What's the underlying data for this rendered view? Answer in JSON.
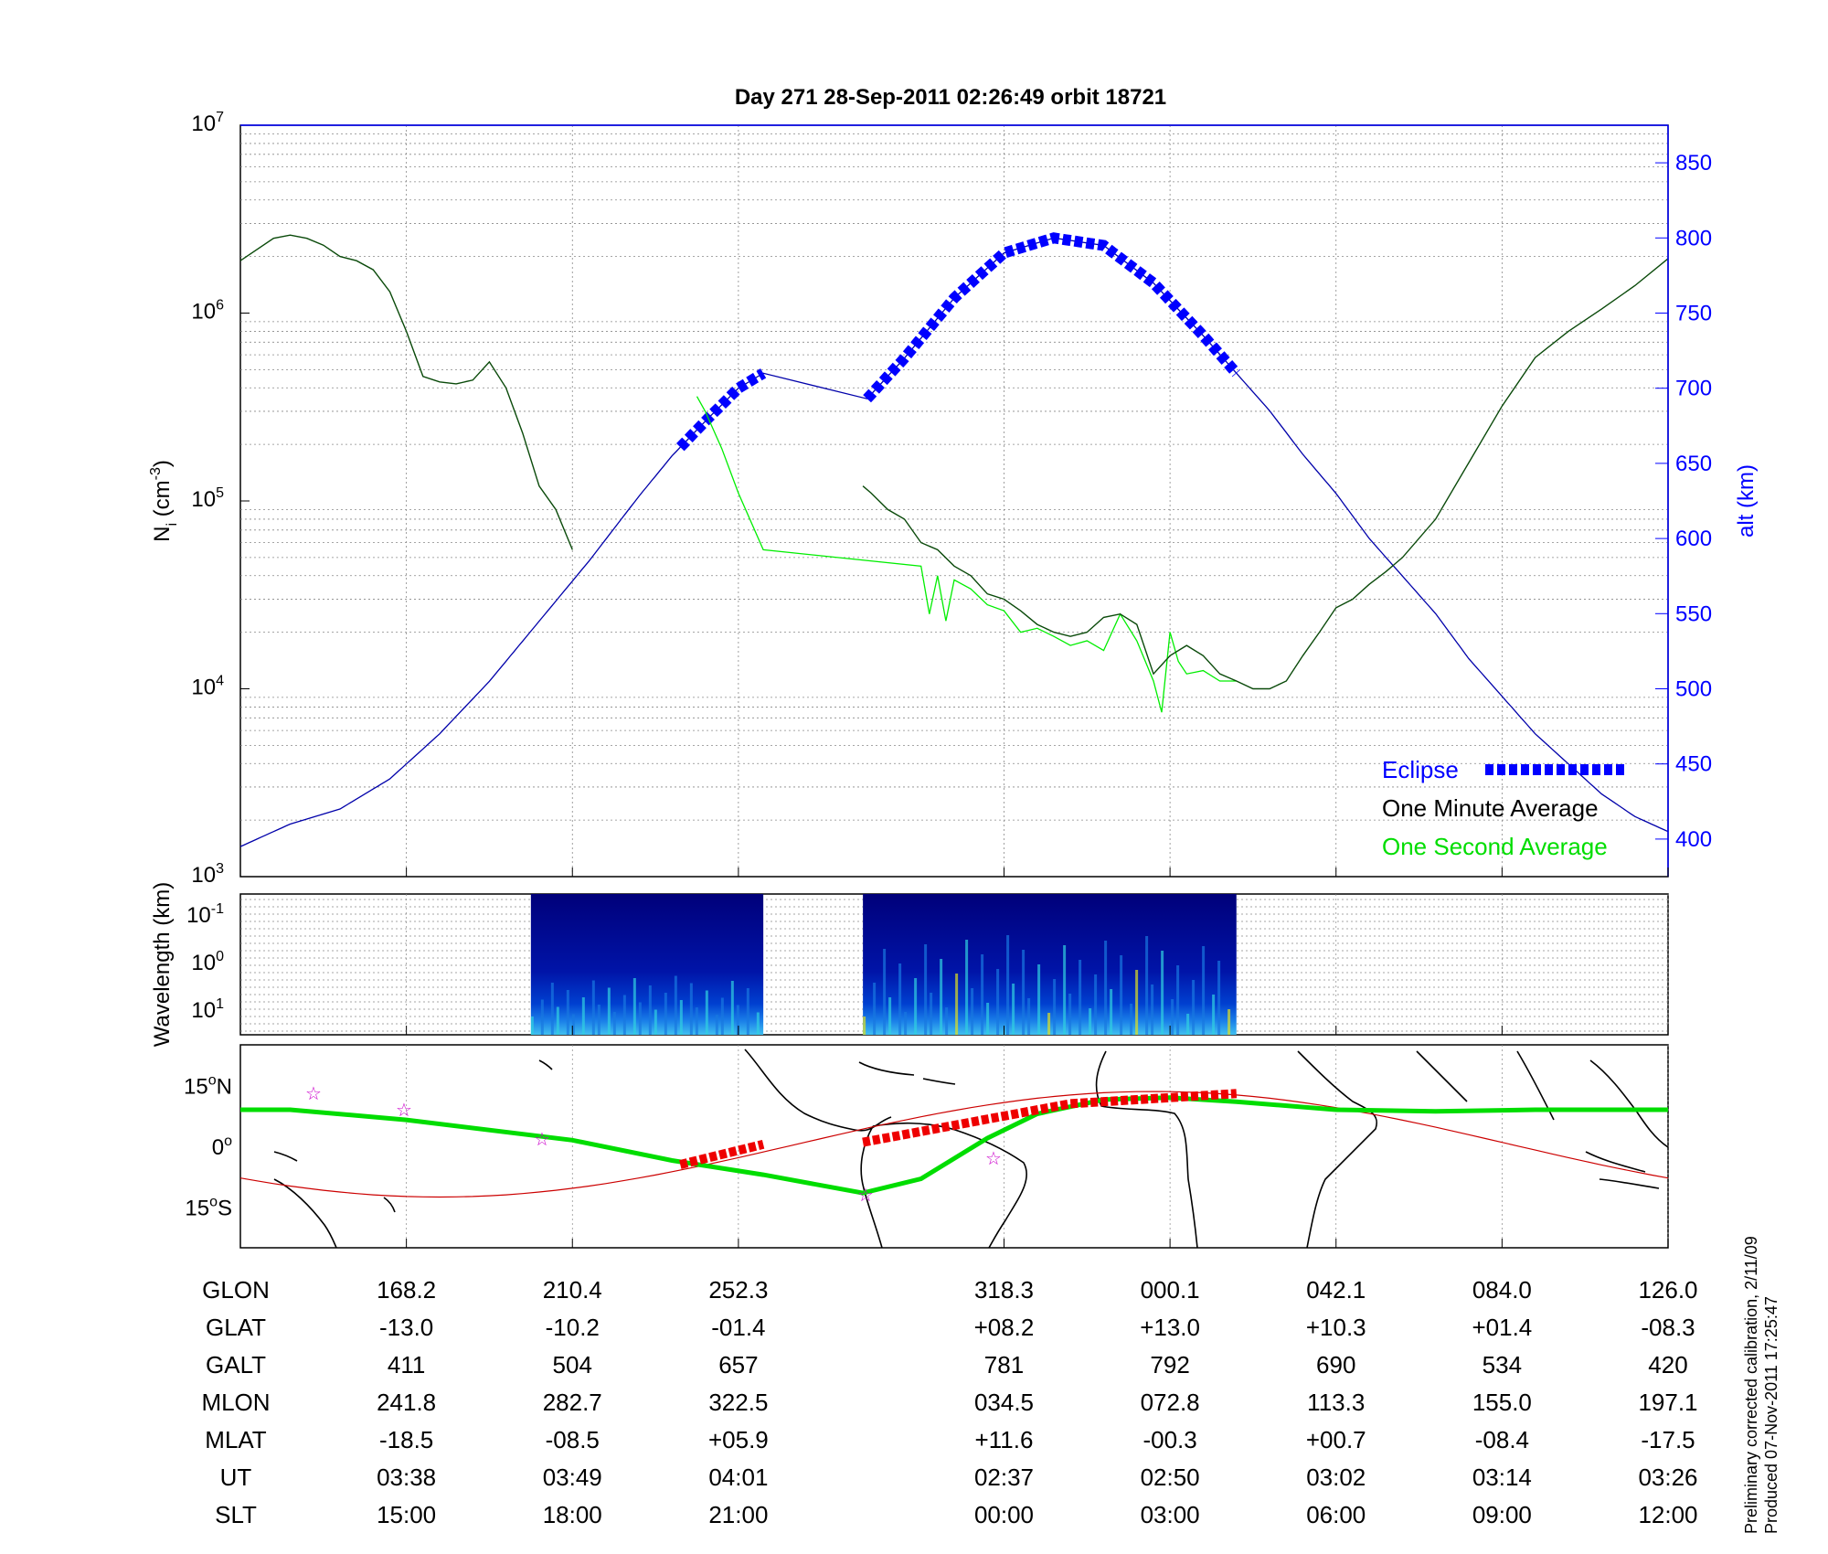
{
  "title": "Day 271  28-Sep-2011 02:26:49   orbit 18721",
  "credit": {
    "line1": "Preliminary corrected calibration, 2/11/09",
    "line2": "Produced 07-Nov-2011 17:25:47"
  },
  "colors": {
    "eclipse": "#0000ff",
    "one_minute": "#000000",
    "one_second": "#00ee00",
    "altitude": "#0000aa",
    "track": "#00dd00",
    "track_eclipse": "#ee0000",
    "magnetic_equator": "#cc0000",
    "stars": "#cc00cc"
  },
  "chart_data": [
    {
      "type": "line",
      "title": "Day 271  28-Sep-2011 02:26:49   orbit 18721",
      "ylabel_left": "N",
      "ylabel_left_sub": "i",
      "ylabel_left_unit": "(cm",
      "ylabel_left_unit_exp": "-3",
      "ylabel_left_close": ")",
      "ylabel_right": "alt (km)",
      "y_scale": "log",
      "ylim_left": [
        1000,
        10000000
      ],
      "ylim_right": [
        375,
        875
      ],
      "yticks_left": [
        {
          "base": "10",
          "exp": "3",
          "value": 1000
        },
        {
          "base": "10",
          "exp": "4",
          "value": 10000
        },
        {
          "base": "10",
          "exp": "5",
          "value": 100000
        },
        {
          "base": "10",
          "exp": "6",
          "value": 1000000
        },
        {
          "base": "10",
          "exp": "7",
          "value": 10000000
        }
      ],
      "yticks_right": [
        "400",
        "450",
        "500",
        "550",
        "600",
        "650",
        "700",
        "750",
        "800",
        "850"
      ],
      "x_minutes": [
        0,
        86
      ],
      "x_ticks_minutes": [
        10,
        20,
        30,
        46,
        56,
        66,
        76,
        86
      ],
      "grid": true,
      "legend_position": "bottom-right",
      "legend": {
        "eclipse": "Eclipse",
        "one_minute": "One Minute Average",
        "one_second": "One Second Average"
      },
      "series": [
        {
          "name": "One Minute Average",
          "x": [
            0,
            2,
            3,
            4,
            5,
            6,
            7,
            8,
            9,
            10,
            11,
            12,
            13,
            14,
            15,
            16,
            17,
            18,
            19,
            20,
            21,
            22,
            23,
            24,
            25,
            26,
            27,
            28,
            29,
            30,
            31,
            31.5
          ],
          "y": [
            1900000,
            2500000,
            2600000,
            2500000,
            2300000,
            2000000,
            1900000,
            1700000,
            1300000,
            800000,
            460000,
            430000,
            420000,
            440000,
            550000,
            400000,
            230000,
            120000,
            90000,
            55000,
            null,
            null,
            null,
            null,
            null,
            null,
            null,
            null,
            null,
            null,
            null,
            null
          ]
        },
        {
          "name": "One Minute Average (post-gap)",
          "x": [
            37.5,
            38,
            39,
            40,
            41,
            42,
            43,
            44,
            45,
            46,
            47,
            48,
            49,
            50,
            51,
            52,
            53,
            54,
            55,
            56,
            57,
            58,
            59,
            60,
            61,
            62,
            63,
            64,
            65,
            66,
            67,
            68,
            69,
            70,
            72,
            74,
            76,
            78,
            80,
            82,
            84,
            86
          ],
          "y": [
            120000,
            110000,
            90000,
            80000,
            60000,
            55000,
            45000,
            40000,
            32000,
            30000,
            26000,
            22000,
            20000,
            19000,
            20000,
            24000,
            25000,
            22000,
            12000,
            15000,
            17000,
            15000,
            12000,
            11000,
            10000,
            10000,
            11000,
            15000,
            20000,
            27000,
            30000,
            36000,
            42000,
            50000,
            80000,
            160000,
            320000,
            580000,
            800000,
            1050000,
            1400000,
            1950000
          ]
        },
        {
          "name": "One Second Average",
          "x": [
            27.5,
            28,
            29,
            30,
            31.5,
            41,
            41.5,
            42,
            42.5,
            43,
            44,
            45,
            46,
            47,
            48,
            49,
            50,
            51,
            52,
            53,
            54,
            55,
            55.5,
            56,
            56.5,
            57,
            58,
            59,
            60
          ],
          "y": [
            360000,
            300000,
            190000,
            110000,
            55000,
            45000,
            25000,
            40000,
            23000,
            38000,
            34000,
            28000,
            26000,
            20000,
            21000,
            19000,
            17000,
            18000,
            16000,
            25000,
            18000,
            11000,
            7500,
            20000,
            14000,
            12000,
            12500,
            11000,
            11000
          ]
        },
        {
          "name": "Altitude",
          "axis": "right",
          "x": [
            0,
            3,
            6,
            9,
            12,
            15,
            18,
            21,
            24,
            26,
            28,
            30,
            31.5,
            37.5,
            40,
            43,
            46,
            49,
            52,
            55,
            58,
            60,
            62,
            64,
            66,
            68,
            70,
            72,
            74,
            76,
            78,
            80,
            82,
            84,
            86
          ],
          "y": [
            395,
            410,
            420,
            440,
            470,
            505,
            545,
            585,
            628,
            655,
            678,
            700,
            710,
            690,
            720,
            760,
            790,
            800,
            795,
            770,
            735,
            710,
            685,
            656,
            630,
            600,
            575,
            550,
            520,
            495,
            470,
            450,
            430,
            415,
            405
          ]
        }
      ],
      "eclipse_segments_minutes": [
        [
          26.5,
          31.5
        ],
        [
          37.5,
          60
        ]
      ]
    },
    {
      "type": "heatmap",
      "ylabel": "Wavelength (km)",
      "yticks": [
        {
          "base": "10",
          "exp": "-1"
        },
        {
          "base": "10",
          "exp": "0"
        },
        {
          "base": "10",
          "exp": "1"
        }
      ],
      "data_blocks_minutes": [
        [
          17.5,
          31.5
        ],
        [
          37.5,
          60
        ]
      ]
    },
    {
      "type": "map",
      "yticks": [
        {
          "label": "15",
          "deg": "o",
          "hem": "N"
        },
        {
          "label": "0",
          "deg": "o",
          "hem": ""
        },
        {
          "label": "15",
          "deg": "o",
          "hem": "S"
        }
      ],
      "ylim_lat": [
        -25,
        25
      ]
    },
    {
      "type": "table",
      "row_labels": [
        "GLON",
        "GLAT",
        "GALT",
        "MLON",
        "MLAT",
        "UT",
        "SLT"
      ],
      "columns": [
        {
          "GLON": "168.2",
          "GLAT": "-13.0",
          "GALT": "411",
          "MLON": "241.8",
          "MLAT": "-18.5",
          "UT": "03:38",
          "SLT": "15:00"
        },
        {
          "GLON": "210.4",
          "GLAT": "-10.2",
          "GALT": "504",
          "MLON": "282.7",
          "MLAT": "-08.5",
          "UT": "03:49",
          "SLT": "18:00"
        },
        {
          "GLON": "252.3",
          "GLAT": "-01.4",
          "GALT": "657",
          "MLON": "322.5",
          "MLAT": "+05.9",
          "UT": "04:01",
          "SLT": "21:00"
        },
        {
          "GLON": "318.3",
          "GLAT": "+08.2",
          "GALT": "781",
          "MLON": "034.5",
          "MLAT": "+11.6",
          "UT": "02:37",
          "SLT": "00:00"
        },
        {
          "GLON": "000.1",
          "GLAT": "+13.0",
          "GALT": "792",
          "MLON": "072.8",
          "MLAT": "-00.3",
          "UT": "02:50",
          "SLT": "03:00"
        },
        {
          "GLON": "042.1",
          "GLAT": "+10.3",
          "GALT": "690",
          "MLON": "113.3",
          "MLAT": "+00.7",
          "UT": "03:02",
          "SLT": "06:00"
        },
        {
          "GLON": "084.0",
          "GLAT": "+01.4",
          "GALT": "534",
          "MLON": "155.0",
          "MLAT": "-08.4",
          "UT": "03:14",
          "SLT": "09:00"
        },
        {
          "GLON": "126.0",
          "GLAT": "-08.3",
          "GALT": "420",
          "MLON": "197.1",
          "MLAT": "-17.5",
          "UT": "03:26",
          "SLT": "12:00"
        }
      ]
    }
  ]
}
